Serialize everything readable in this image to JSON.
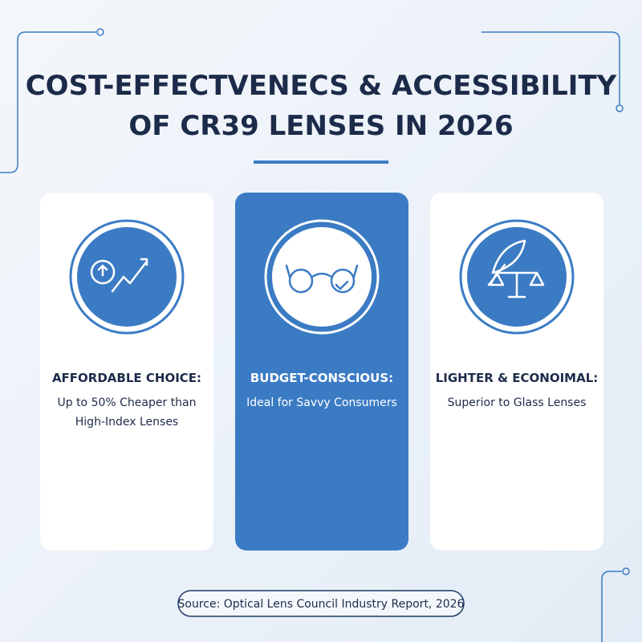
{
  "header": {
    "title_lines": [
      "COST-EFFECTVENECS & ACCESSIBILITY",
      "OF CR39 LENSES IN 2026"
    ]
  },
  "cards": [
    {
      "heading": "AFFORDABLE CHOICE:",
      "text_lines": [
        "Up to 50% Cheaper than",
        "High-Index Lenses"
      ]
    },
    {
      "heading": "BUDGET-CONSCIOUS:",
      "text_lines": [
        "Ideal for Savvy Consumers"
      ]
    },
    {
      "heading": "LIGHTER & ECONOIMAL:",
      "text_lines": [
        "Superior to Glass Lenses"
      ]
    }
  ],
  "footer": {
    "source": "Source: Optical Lens Council Industry Report, 2026"
  }
}
